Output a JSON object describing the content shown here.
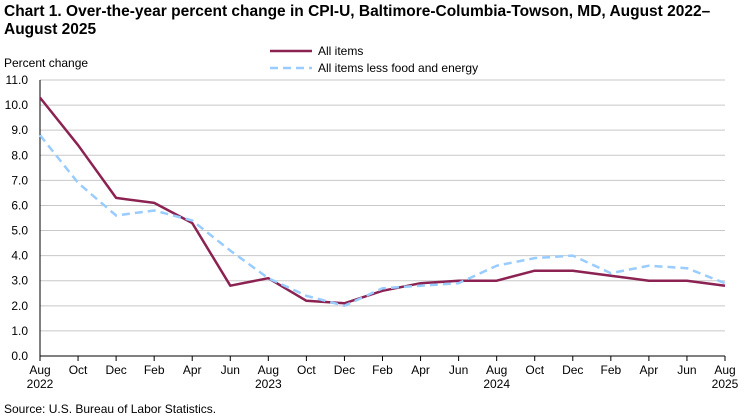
{
  "chart_data": {
    "type": "line",
    "title": "Chart 1. Over-the-year percent change in CPI-U, Baltimore-Columbia-Towson,  MD, August 2022–August 2025",
    "ylabel": "Percent change",
    "xlabel": "",
    "ylim": [
      0,
      11
    ],
    "yticks": [
      "0.0",
      "1.0",
      "2.0",
      "3.0",
      "4.0",
      "5.0",
      "6.0",
      "7.0",
      "8.0",
      "9.0",
      "10.0",
      "11.0"
    ],
    "x": [
      "Aug 2022",
      "Oct 2022",
      "Dec 2022",
      "Feb 2023",
      "Apr 2023",
      "Jun 2023",
      "Aug 2023",
      "Oct 2023",
      "Dec 2023",
      "Feb 2024",
      "Apr 2024",
      "Jun 2024",
      "Aug 2024",
      "Oct 2024",
      "Dec 2024",
      "Feb 2025",
      "Apr 2025",
      "Jun 2025",
      "Aug 2025"
    ],
    "xtick_labels": [
      "Aug",
      "Oct",
      "Dec",
      "Feb",
      "Apr",
      "Jun",
      "Aug",
      "Oct",
      "Dec",
      "Feb",
      "Apr",
      "Jun",
      "Aug",
      "Oct",
      "Dec",
      "Feb",
      "Apr",
      "Jun",
      "Aug"
    ],
    "xtick_years": [
      "2022",
      "",
      "",
      "",
      "",
      "",
      "2023",
      "",
      "",
      "",
      "",
      "",
      "2024",
      "",
      "",
      "",
      "",
      "",
      "2025"
    ],
    "series": [
      {
        "name": "All items",
        "color": "#8b2252",
        "dash": "solid",
        "values": [
          10.3,
          8.4,
          6.3,
          6.1,
          5.3,
          2.8,
          3.1,
          2.2,
          2.1,
          2.6,
          2.9,
          3.0,
          3.0,
          3.4,
          3.4,
          3.2,
          3.0,
          3.0,
          2.8
        ]
      },
      {
        "name": "All items less food and energy",
        "color": "#99ccff",
        "dash": "dashed",
        "values": [
          8.8,
          6.9,
          5.6,
          5.8,
          5.4,
          4.2,
          3.1,
          2.4,
          2.0,
          2.7,
          2.8,
          2.9,
          3.6,
          3.9,
          4.0,
          3.3,
          3.6,
          3.5,
          2.9
        ]
      }
    ],
    "grid": true,
    "legend": "top-center"
  },
  "source": "Source: U.S. Bureau of Labor Statistics."
}
